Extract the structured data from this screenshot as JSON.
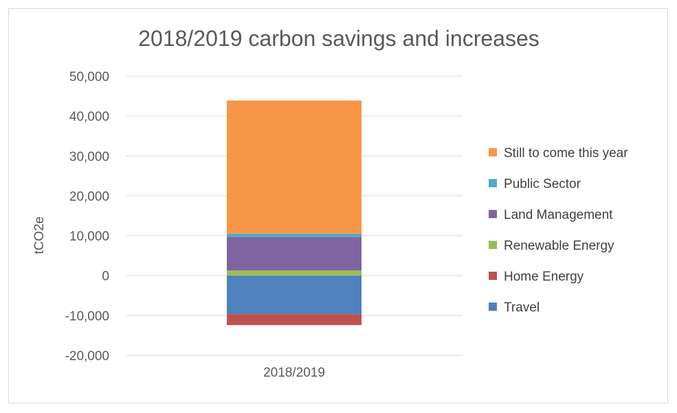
{
  "chart_data": {
    "type": "bar",
    "stacked": true,
    "title": "2018/2019 carbon savings and increases",
    "xlabel": "",
    "ylabel": "tCO2e",
    "categories": [
      "2018/2019"
    ],
    "ylim": [
      -20000,
      50000
    ],
    "y_ticks": [
      50000,
      40000,
      30000,
      20000,
      10000,
      0,
      -10000,
      -20000
    ],
    "y_tick_labels": [
      "50,000",
      "40,000",
      "30,000",
      "20,000",
      "10,000",
      "0",
      "-10,000",
      "-20,000"
    ],
    "grid": true,
    "legend_position": "right",
    "series": [
      {
        "name": "Travel",
        "values": [
          -9700
        ],
        "color": "#4f81bd"
      },
      {
        "name": "Home Energy",
        "values": [
          -2700
        ],
        "color": "#c0504d"
      },
      {
        "name": "Renewable Energy",
        "values": [
          1300
        ],
        "color": "#9bbb59"
      },
      {
        "name": "Land Management",
        "values": [
          8400
        ],
        "color": "#8064a2"
      },
      {
        "name": "Public Sector",
        "values": [
          800
        ],
        "color": "#4bacc6"
      },
      {
        "name": "Still to come this year",
        "values": [
          33400
        ],
        "color": "#f79646"
      }
    ]
  }
}
